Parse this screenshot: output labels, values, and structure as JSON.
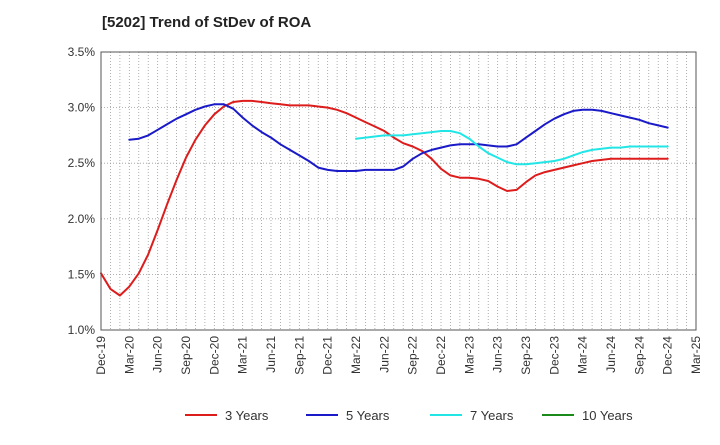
{
  "chart_data": {
    "type": "line",
    "title": "[5202]  Trend of StDev of ROA",
    "xlabel": "",
    "ylabel": "",
    "x_ticks": [
      "Dec-19",
      "Mar-20",
      "Jun-20",
      "Sep-20",
      "Dec-20",
      "Mar-21",
      "Jun-21",
      "Sep-21",
      "Dec-21",
      "Mar-22",
      "Jun-22",
      "Sep-22",
      "Dec-22",
      "Mar-23",
      "Jun-23",
      "Sep-23",
      "Dec-23",
      "Mar-24",
      "Jun-24",
      "Sep-24",
      "Dec-24",
      "Mar-25"
    ],
    "y_ticks": [
      "1.0%",
      "1.5%",
      "2.0%",
      "2.5%",
      "3.0%",
      "3.5%"
    ],
    "ylim": [
      1.0,
      3.5
    ],
    "grid": true,
    "legend_position": "bottom",
    "series": [
      {
        "name": "3 Years",
        "color": "#dd1c1c",
        "points": [
          [
            "Dec-19",
            1.51
          ],
          [
            "Jan-20",
            1.37
          ],
          [
            "Feb-20",
            1.31
          ],
          [
            "Mar-20",
            1.39
          ],
          [
            "Apr-20",
            1.51
          ],
          [
            "May-20",
            1.68
          ],
          [
            "Jun-20",
            1.9
          ],
          [
            "Jul-20",
            2.13
          ],
          [
            "Aug-20",
            2.35
          ],
          [
            "Sep-20",
            2.55
          ],
          [
            "Oct-20",
            2.71
          ],
          [
            "Nov-20",
            2.84
          ],
          [
            "Dec-20",
            2.94
          ],
          [
            "Jan-21",
            3.01
          ],
          [
            "Feb-21",
            3.05
          ],
          [
            "Mar-21",
            3.06
          ],
          [
            "Apr-21",
            3.06
          ],
          [
            "May-21",
            3.05
          ],
          [
            "Jun-21",
            3.04
          ],
          [
            "Jul-21",
            3.03
          ],
          [
            "Aug-21",
            3.02
          ],
          [
            "Sep-21",
            3.02
          ],
          [
            "Oct-21",
            3.02
          ],
          [
            "Nov-21",
            3.01
          ],
          [
            "Dec-21",
            3.0
          ],
          [
            "Jan-22",
            2.98
          ],
          [
            "Feb-22",
            2.95
          ],
          [
            "Mar-22",
            2.91
          ],
          [
            "Apr-22",
            2.87
          ],
          [
            "May-22",
            2.83
          ],
          [
            "Jun-22",
            2.79
          ],
          [
            "Jul-22",
            2.73
          ],
          [
            "Aug-22",
            2.68
          ],
          [
            "Sep-22",
            2.65
          ],
          [
            "Oct-22",
            2.61
          ],
          [
            "Nov-22",
            2.54
          ],
          [
            "Dec-22",
            2.45
          ],
          [
            "Jan-23",
            2.39
          ],
          [
            "Feb-23",
            2.37
          ],
          [
            "Mar-23",
            2.37
          ],
          [
            "Apr-23",
            2.36
          ],
          [
            "May-23",
            2.34
          ],
          [
            "Jun-23",
            2.29
          ],
          [
            "Jul-23",
            2.25
          ],
          [
            "Aug-23",
            2.26
          ],
          [
            "Sep-23",
            2.33
          ],
          [
            "Oct-23",
            2.39
          ],
          [
            "Nov-23",
            2.42
          ],
          [
            "Dec-23",
            2.44
          ],
          [
            "Jan-24",
            2.46
          ],
          [
            "Feb-24",
            2.48
          ],
          [
            "Mar-24",
            2.5
          ],
          [
            "Apr-24",
            2.52
          ],
          [
            "May-24",
            2.53
          ],
          [
            "Jun-24",
            2.54
          ],
          [
            "Jul-24",
            2.54
          ],
          [
            "Aug-24",
            2.54
          ],
          [
            "Sep-24",
            2.54
          ],
          [
            "Oct-24",
            2.54
          ],
          [
            "Nov-24",
            2.54
          ],
          [
            "Dec-24",
            2.54
          ]
        ]
      },
      {
        "name": "5 Years",
        "color": "#1a1ac8",
        "points": [
          [
            "Mar-20",
            2.71
          ],
          [
            "Apr-20",
            2.72
          ],
          [
            "May-20",
            2.75
          ],
          [
            "Jun-20",
            2.8
          ],
          [
            "Jul-20",
            2.85
          ],
          [
            "Aug-20",
            2.9
          ],
          [
            "Sep-20",
            2.94
          ],
          [
            "Oct-20",
            2.98
          ],
          [
            "Nov-20",
            3.01
          ],
          [
            "Dec-20",
            3.03
          ],
          [
            "Jan-21",
            3.03
          ],
          [
            "Feb-21",
            2.99
          ],
          [
            "Mar-21",
            2.91
          ],
          [
            "Apr-21",
            2.84
          ],
          [
            "May-21",
            2.78
          ],
          [
            "Jun-21",
            2.73
          ],
          [
            "Jul-21",
            2.67
          ],
          [
            "Aug-21",
            2.62
          ],
          [
            "Sep-21",
            2.57
          ],
          [
            "Oct-21",
            2.52
          ],
          [
            "Nov-21",
            2.46
          ],
          [
            "Dec-21",
            2.44
          ],
          [
            "Jan-22",
            2.43
          ],
          [
            "Feb-22",
            2.43
          ],
          [
            "Mar-22",
            2.43
          ],
          [
            "Apr-22",
            2.44
          ],
          [
            "May-22",
            2.44
          ],
          [
            "Jun-22",
            2.44
          ],
          [
            "Jul-22",
            2.44
          ],
          [
            "Aug-22",
            2.47
          ],
          [
            "Sep-22",
            2.54
          ],
          [
            "Oct-22",
            2.59
          ],
          [
            "Nov-22",
            2.62
          ],
          [
            "Dec-22",
            2.64
          ],
          [
            "Jan-23",
            2.66
          ],
          [
            "Feb-23",
            2.67
          ],
          [
            "Mar-23",
            2.67
          ],
          [
            "Apr-23",
            2.67
          ],
          [
            "May-23",
            2.66
          ],
          [
            "Jun-23",
            2.65
          ],
          [
            "Jul-23",
            2.65
          ],
          [
            "Aug-23",
            2.67
          ],
          [
            "Sep-23",
            2.73
          ],
          [
            "Oct-23",
            2.79
          ],
          [
            "Nov-23",
            2.85
          ],
          [
            "Dec-23",
            2.9
          ],
          [
            "Jan-24",
            2.94
          ],
          [
            "Feb-24",
            2.97
          ],
          [
            "Mar-24",
            2.98
          ],
          [
            "Apr-24",
            2.98
          ],
          [
            "May-24",
            2.97
          ],
          [
            "Jun-24",
            2.95
          ],
          [
            "Jul-24",
            2.93
          ],
          [
            "Aug-24",
            2.91
          ],
          [
            "Sep-24",
            2.89
          ],
          [
            "Oct-24",
            2.86
          ],
          [
            "Nov-24",
            2.84
          ],
          [
            "Dec-24",
            2.82
          ]
        ]
      },
      {
        "name": "7 Years",
        "color": "#22e6e6",
        "points": [
          [
            "Mar-22",
            2.72
          ],
          [
            "Apr-22",
            2.73
          ],
          [
            "May-22",
            2.74
          ],
          [
            "Jun-22",
            2.75
          ],
          [
            "Jul-22",
            2.75
          ],
          [
            "Aug-22",
            2.75
          ],
          [
            "Sep-22",
            2.76
          ],
          [
            "Oct-22",
            2.77
          ],
          [
            "Nov-22",
            2.78
          ],
          [
            "Dec-22",
            2.79
          ],
          [
            "Jan-23",
            2.79
          ],
          [
            "Feb-23",
            2.77
          ],
          [
            "Mar-23",
            2.72
          ],
          [
            "Apr-23",
            2.65
          ],
          [
            "May-23",
            2.59
          ],
          [
            "Jun-23",
            2.55
          ],
          [
            "Jul-23",
            2.51
          ],
          [
            "Aug-23",
            2.49
          ],
          [
            "Sep-23",
            2.49
          ],
          [
            "Oct-23",
            2.5
          ],
          [
            "Nov-23",
            2.51
          ],
          [
            "Dec-23",
            2.52
          ],
          [
            "Jan-24",
            2.54
          ],
          [
            "Feb-24",
            2.57
          ],
          [
            "Mar-24",
            2.6
          ],
          [
            "Apr-24",
            2.62
          ],
          [
            "May-24",
            2.63
          ],
          [
            "Jun-24",
            2.64
          ],
          [
            "Jul-24",
            2.64
          ],
          [
            "Aug-24",
            2.65
          ],
          [
            "Sep-24",
            2.65
          ],
          [
            "Oct-24",
            2.65
          ],
          [
            "Nov-24",
            2.65
          ],
          [
            "Dec-24",
            2.65
          ]
        ]
      },
      {
        "name": "10 Years",
        "color": "#1a8a1a",
        "points": []
      }
    ]
  }
}
